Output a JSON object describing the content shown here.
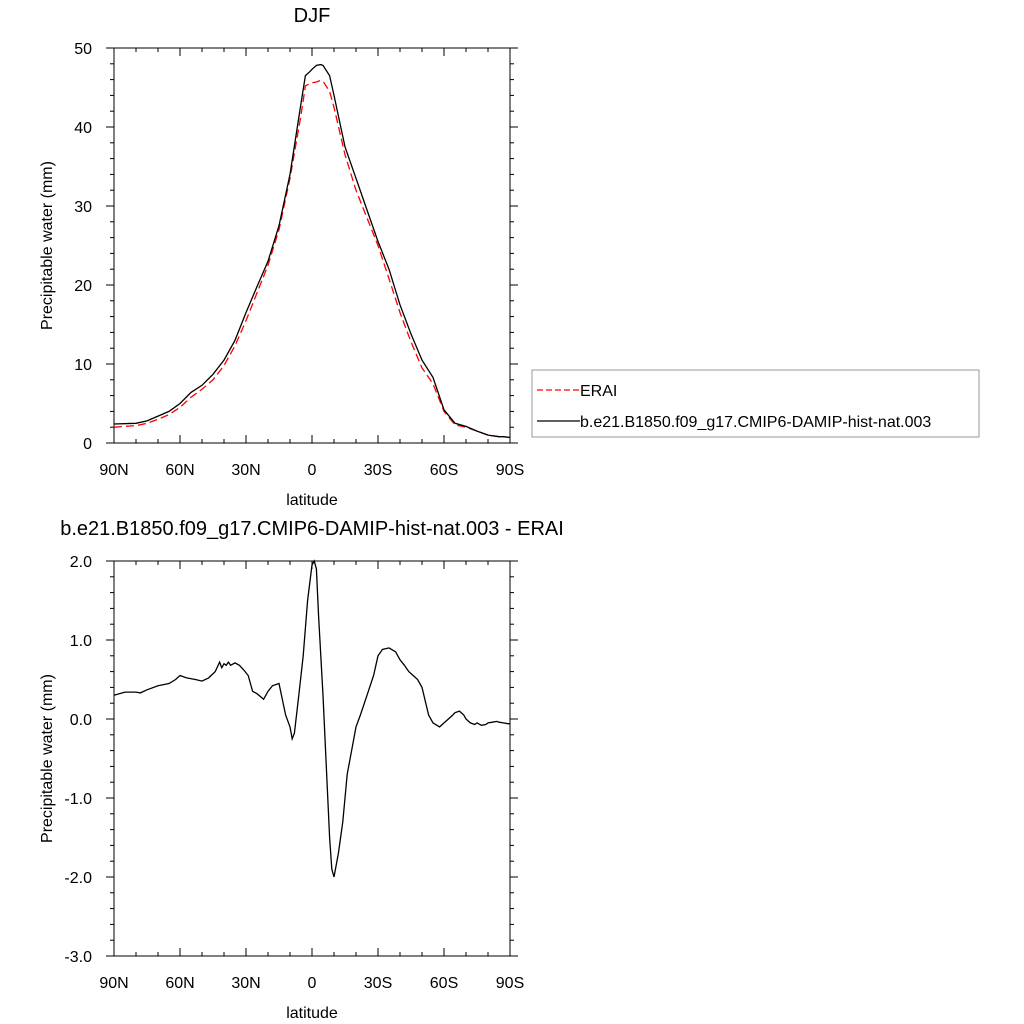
{
  "chart_data": [
    {
      "type": "line",
      "title": "DJF",
      "xlabel": "latitude",
      "ylabel": "Precipitable water (mm)",
      "xlim": [
        -90,
        90
      ],
      "ylim": [
        0,
        50
      ],
      "x_ticks": [
        -90,
        -60,
        -30,
        0,
        30,
        60,
        90
      ],
      "x_tick_labels": [
        "90N",
        "60N",
        "30N",
        "0",
        "30S",
        "60S",
        "90S"
      ],
      "y_ticks": [
        0,
        10,
        20,
        30,
        40,
        50
      ],
      "y_tick_labels": [
        "0",
        "10",
        "20",
        "30",
        "40",
        "50"
      ],
      "grid": false,
      "legend_position": "right",
      "series": [
        {
          "name": "ERAI",
          "color": "#ff0000",
          "style": "dashed",
          "x": [
            -90,
            -80,
            -75,
            -70,
            -65,
            -60,
            -55,
            -50,
            -45,
            -40,
            -35,
            -30,
            -25,
            -20,
            -15,
            -10,
            -5,
            -3,
            -1,
            0,
            2,
            4,
            5,
            8,
            10,
            15,
            20,
            25,
            30,
            35,
            40,
            45,
            50,
            55,
            60,
            65,
            70,
            75,
            80,
            85,
            87,
            90
          ],
          "y": [
            2.0,
            2.2,
            2.5,
            3.0,
            3.6,
            4.5,
            5.8,
            6.8,
            8.0,
            9.8,
            12.3,
            15.5,
            19.0,
            22.5,
            27.0,
            33.5,
            41.5,
            45.2,
            45.5,
            45.6,
            45.7,
            45.9,
            45.8,
            44.5,
            42.5,
            36.5,
            32.0,
            28.5,
            25.0,
            20.8,
            16.5,
            12.8,
            9.5,
            7.5,
            4.0,
            2.3,
            2.0,
            1.5,
            1.0,
            0.8,
            0.8,
            0.7
          ]
        },
        {
          "name": "b.e21.B1850.f09_g17.CMIP6-DAMIP-hist-nat.003",
          "color": "#000000",
          "style": "solid",
          "x": [
            -90,
            -80,
            -75,
            -70,
            -65,
            -60,
            -55,
            -50,
            -45,
            -40,
            -35,
            -30,
            -25,
            -20,
            -15,
            -10,
            -5,
            -3,
            -1,
            0,
            2,
            4,
            5,
            8,
            10,
            15,
            20,
            25,
            30,
            35,
            40,
            45,
            50,
            55,
            60,
            65,
            70,
            75,
            80,
            85,
            87,
            90
          ],
          "y": [
            2.4,
            2.5,
            2.8,
            3.4,
            4.0,
            5.0,
            6.4,
            7.3,
            8.7,
            10.5,
            13.0,
            16.5,
            19.8,
            23.0,
            27.5,
            34.0,
            43.0,
            46.5,
            47.0,
            47.3,
            47.8,
            47.9,
            47.8,
            46.5,
            44.0,
            37.5,
            33.5,
            29.5,
            25.5,
            22.0,
            17.5,
            13.8,
            10.5,
            8.3,
            4.2,
            2.5,
            2.1,
            1.5,
            1.0,
            0.8,
            0.8,
            0.7
          ]
        }
      ]
    },
    {
      "type": "line",
      "title": "b.e21.B1850.f09_g17.CMIP6-DAMIP-hist-nat.003 - ERAI",
      "xlabel": "latitude",
      "ylabel": "Precipitable water (mm)",
      "xlim": [
        -90,
        90
      ],
      "ylim": [
        -3.0,
        2.0
      ],
      "x_ticks": [
        -90,
        -60,
        -30,
        0,
        30,
        60,
        90
      ],
      "x_tick_labels": [
        "90N",
        "60N",
        "30N",
        "0",
        "30S",
        "60S",
        "90S"
      ],
      "y_ticks": [
        -3.0,
        -2.0,
        -1.0,
        0.0,
        1.0,
        2.0
      ],
      "y_tick_labels": [
        "-3.0",
        "-2.0",
        "-1.0",
        "0.0",
        "1.0",
        "2.0"
      ],
      "grid": false,
      "series": [
        {
          "color": "#000000",
          "style": "solid",
          "x": [
            -90,
            -85,
            -80,
            -78,
            -75,
            -70,
            -65,
            -62,
            -60,
            -57,
            -53,
            -50,
            -47,
            -44,
            -42,
            -41,
            -40,
            -39,
            -38,
            -37,
            -35,
            -33,
            -31,
            -29,
            -27,
            -25,
            -22,
            -20,
            -18,
            -15,
            -12,
            -10,
            -9,
            -8,
            -6,
            -4,
            -2,
            0,
            1,
            2,
            3,
            4,
            5,
            6,
            7,
            8,
            9,
            10,
            11,
            12,
            13,
            14,
            15,
            16,
            18,
            20,
            22,
            25,
            28,
            30,
            32,
            35,
            38,
            40,
            42,
            44,
            46,
            48,
            50,
            53,
            55,
            58,
            60,
            62,
            64,
            65,
            67,
            69,
            70,
            72,
            74,
            75,
            77,
            79,
            80,
            82,
            84,
            85,
            87,
            89,
            90
          ],
          "y": [
            0.3,
            0.34,
            0.34,
            0.33,
            0.37,
            0.42,
            0.45,
            0.5,
            0.55,
            0.52,
            0.5,
            0.48,
            0.52,
            0.6,
            0.72,
            0.65,
            0.7,
            0.68,
            0.72,
            0.68,
            0.71,
            0.68,
            0.62,
            0.55,
            0.35,
            0.32,
            0.25,
            0.35,
            0.42,
            0.45,
            0.05,
            -0.1,
            -0.25,
            -0.18,
            0.3,
            0.8,
            1.5,
            1.95,
            2.0,
            1.9,
            1.3,
            0.8,
            0.3,
            -0.3,
            -0.9,
            -1.5,
            -1.9,
            -2.0,
            -1.85,
            -1.7,
            -1.5,
            -1.3,
            -1.0,
            -0.7,
            -0.4,
            -0.1,
            0.05,
            0.3,
            0.55,
            0.8,
            0.88,
            0.9,
            0.85,
            0.75,
            0.68,
            0.6,
            0.55,
            0.5,
            0.4,
            0.05,
            -0.05,
            -0.1,
            -0.05,
            0.0,
            0.05,
            0.08,
            0.1,
            0.05,
            0.0,
            -0.05,
            -0.07,
            -0.05,
            -0.08,
            -0.07,
            -0.05,
            -0.04,
            -0.03,
            -0.04,
            -0.05,
            -0.06,
            -0.06
          ]
        }
      ]
    }
  ]
}
